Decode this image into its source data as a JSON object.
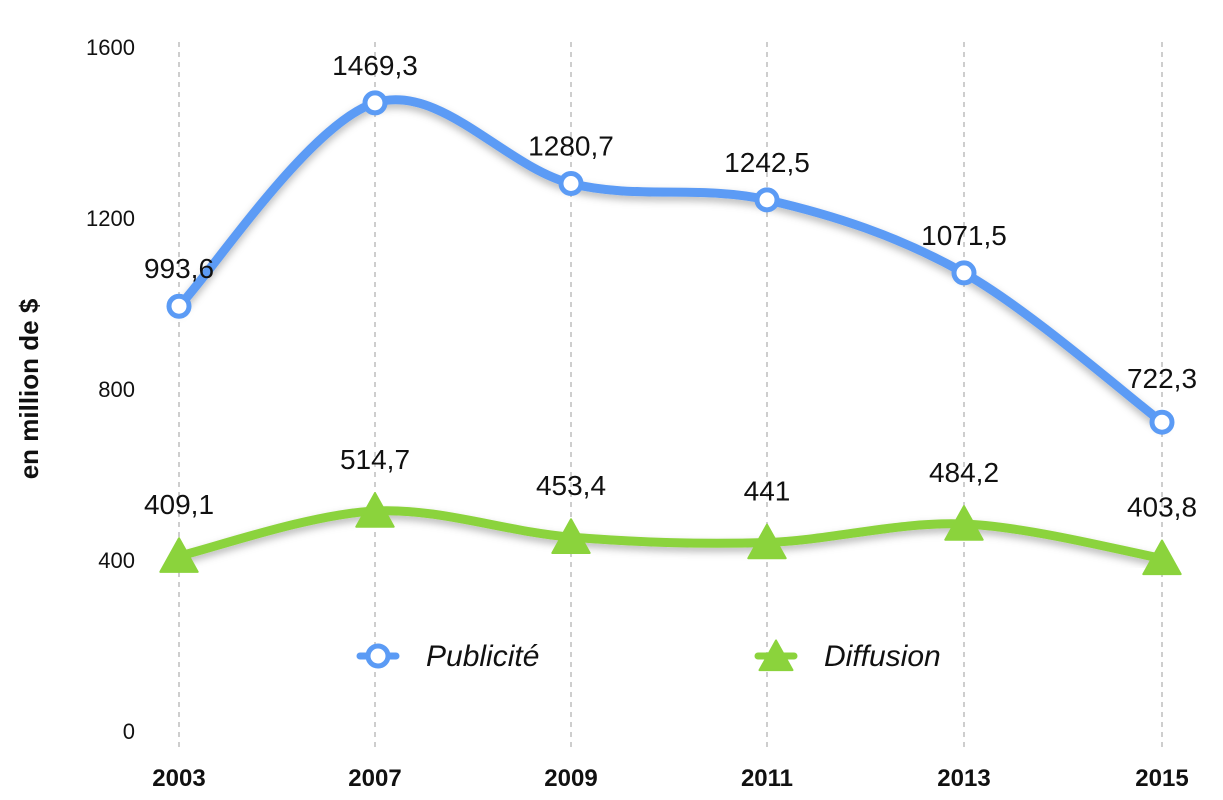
{
  "chart_data": {
    "type": "line",
    "title": "",
    "xlabel": "",
    "ylabel": "en million de $",
    "categories": [
      "2003",
      "2007",
      "2009",
      "2011",
      "2013",
      "2015"
    ],
    "ylim": [
      0,
      1600
    ],
    "yticks": [
      "0",
      "400",
      "800",
      "1200",
      "1600"
    ],
    "grid": "vertical dashed",
    "legend_position": "bottom-center",
    "series": [
      {
        "name": "Publicité",
        "values": [
          993.6,
          1469.3,
          1280.7,
          1242.5,
          1071.5,
          722.3
        ],
        "labels": [
          "993,6",
          "1469,3",
          "1280,7",
          "1242,5",
          "1071,5",
          "722,3"
        ],
        "color": "#5B9BF5",
        "marker": "circle"
      },
      {
        "name": "Diffusion",
        "values": [
          409.1,
          514.7,
          453.4,
          441,
          484.2,
          403.8
        ],
        "labels": [
          "409,1",
          "514,7",
          "453,4",
          "441",
          "484,2",
          "403,8"
        ],
        "color": "#8BD33C",
        "marker": "triangle"
      }
    ]
  }
}
